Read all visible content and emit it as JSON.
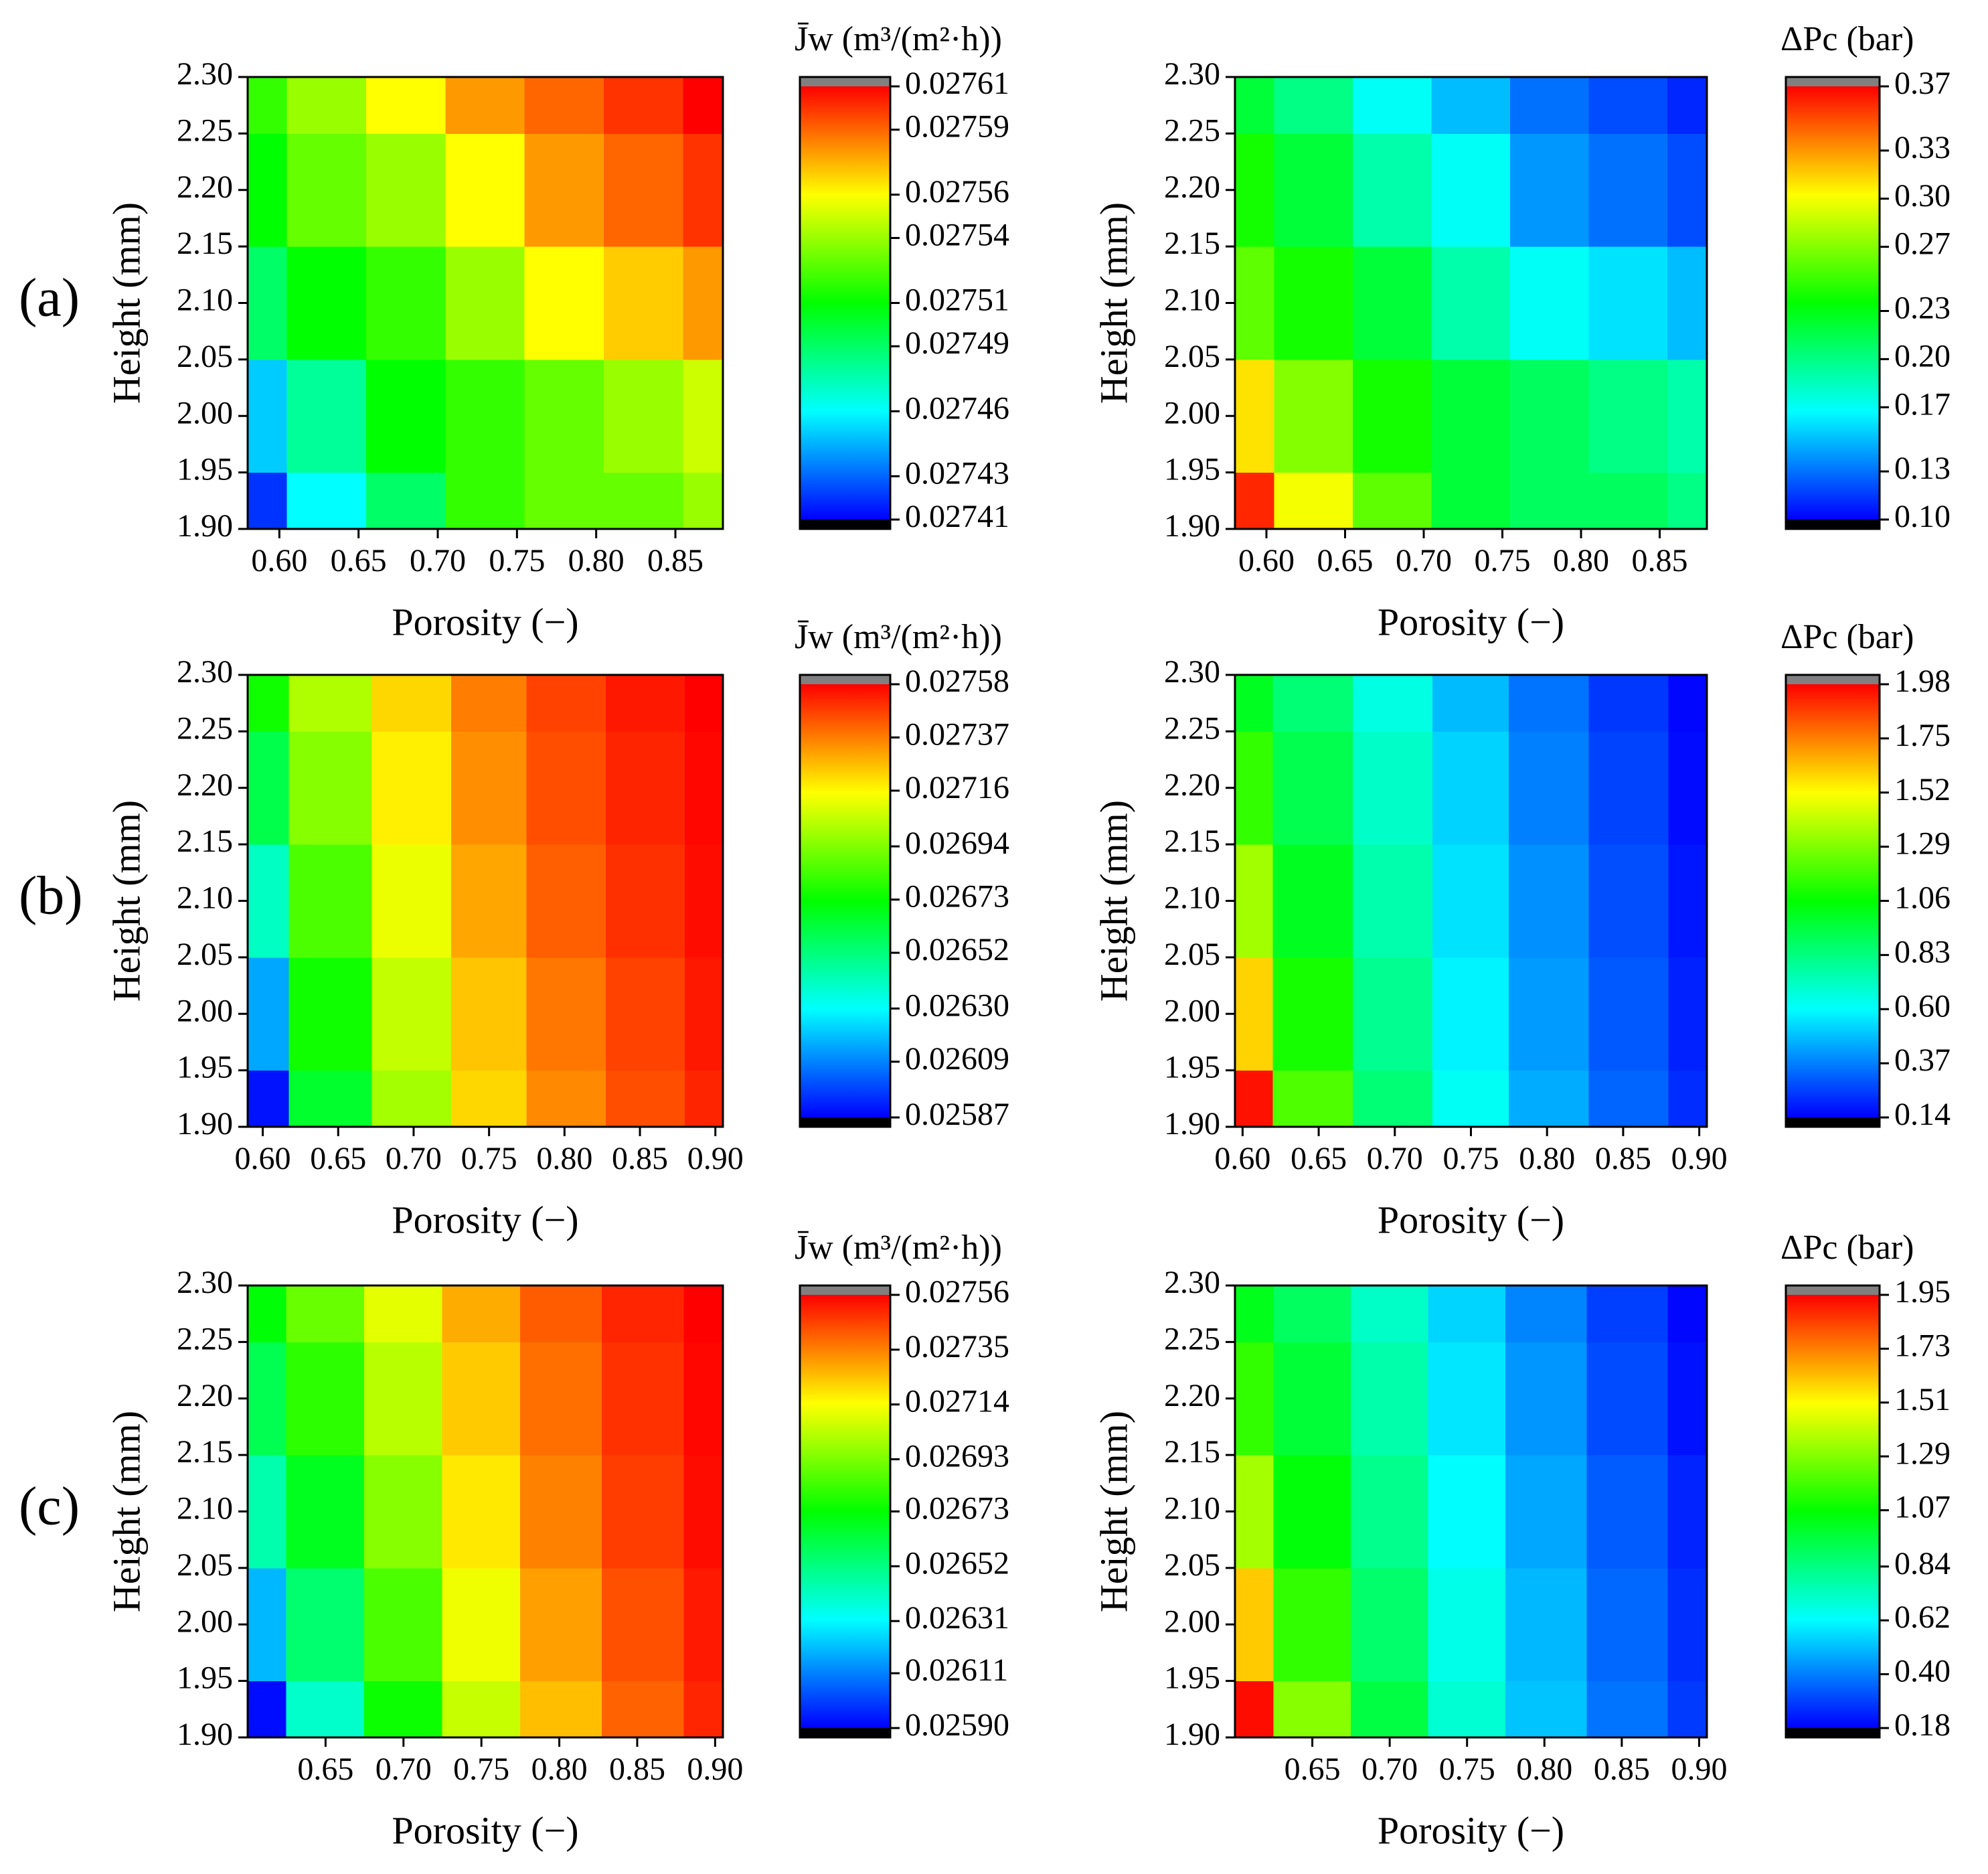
{
  "chart_data": [
    {
      "type": "contour",
      "panel_label": "(a)",
      "colorbar_title": "J̄w (m³/(m²·h))",
      "xlabel": "Porosity (−)",
      "ylabel": "Height (mm)",
      "x": [
        0.58,
        0.63,
        0.68,
        0.73,
        0.78,
        0.83,
        0.88
      ],
      "y": [
        1.9,
        2.0,
        2.1,
        2.2,
        2.3
      ],
      "z": [
        [
          0.02742,
          0.02746,
          0.02749,
          0.02752,
          0.02753,
          0.02753,
          0.02754
        ],
        [
          0.02745,
          0.02748,
          0.02751,
          0.02752,
          0.02753,
          0.02754,
          0.02755
        ],
        [
          0.02749,
          0.02751,
          0.02752,
          0.02754,
          0.02756,
          0.02757,
          0.02758
        ],
        [
          0.02751,
          0.02753,
          0.02754,
          0.02756,
          0.02758,
          0.02759,
          0.0276
        ],
        [
          0.02752,
          0.02754,
          0.02756,
          0.02758,
          0.02759,
          0.0276,
          0.02761
        ]
      ],
      "xlim": [
        0.58,
        0.88
      ],
      "xticks": [
        {
          "value": 0.6,
          "label": "0.60"
        },
        0.65,
        {
          "value": 0.7,
          "label": "0.70"
        },
        0.75,
        {
          "value": 0.8,
          "label": "0.80"
        },
        0.85
      ],
      "ylim": [
        1.9,
        2.3
      ],
      "yticks": [
        {
          "value": 1.9,
          "label": "1.90"
        },
        1.95,
        {
          "value": 2.0,
          "label": "2.00"
        },
        2.05,
        {
          "value": 2.1,
          "label": "2.10"
        },
        2.15,
        {
          "value": 2.2,
          "label": "2.20"
        },
        2.25,
        {
          "value": 2.3,
          "label": "2.30"
        }
      ],
      "zlim": [
        0.02741,
        0.02761
      ],
      "zticks": [
        0.02741,
        0.02743,
        0.02746,
        0.02749,
        0.02751,
        0.02754,
        0.02756,
        0.02759,
        0.02761
      ],
      "colormap": [
        "#0000ff",
        "#00ffff",
        "#00ff00",
        "#ffff00",
        "#ff0000"
      ],
      "under_color": "#000000",
      "over_color": "#808080"
    },
    {
      "type": "contour",
      "colorbar_title": "ΔPc (bar)",
      "xlabel": "Porosity (−)",
      "ylabel": "Height (mm)",
      "x": [
        0.58,
        0.63,
        0.68,
        0.73,
        0.78,
        0.83,
        0.88
      ],
      "y": [
        1.9,
        2.0,
        2.1,
        2.2,
        2.3
      ],
      "z": [
        [
          0.36,
          0.3,
          0.26,
          0.22,
          0.21,
          0.21,
          0.2
        ],
        [
          0.31,
          0.27,
          0.24,
          0.22,
          0.21,
          0.2,
          0.19
        ],
        [
          0.26,
          0.24,
          0.22,
          0.19,
          0.17,
          0.16,
          0.15
        ],
        [
          0.24,
          0.22,
          0.19,
          0.17,
          0.14,
          0.13,
          0.12
        ],
        [
          0.22,
          0.2,
          0.17,
          0.15,
          0.13,
          0.12,
          0.11
        ]
      ],
      "xlim": [
        0.58,
        0.88
      ],
      "xticks": [
        {
          "value": 0.6,
          "label": "0.60"
        },
        0.65,
        {
          "value": 0.7,
          "label": "0.70"
        },
        0.75,
        {
          "value": 0.8,
          "label": "0.80"
        },
        0.85
      ],
      "ylim": [
        1.9,
        2.3
      ],
      "yticks": [
        {
          "value": 1.9,
          "label": "1.90"
        },
        1.95,
        {
          "value": 2.0,
          "label": "2.00"
        },
        2.05,
        {
          "value": 2.1,
          "label": "2.10"
        },
        2.15,
        {
          "value": 2.2,
          "label": "2.20"
        },
        2.25,
        {
          "value": 2.3,
          "label": "2.30"
        }
      ],
      "zlim": [
        0.1,
        0.37
      ],
      "zticks": [
        {
          "value": 0.1,
          "label": "0.10"
        },
        0.13,
        0.17,
        {
          "value": 0.2,
          "label": "0.20"
        },
        0.23,
        0.27,
        {
          "value": 0.3,
          "label": "0.30"
        },
        0.33,
        0.37
      ],
      "colormap": [
        "#0000ff",
        "#00ffff",
        "#00ff00",
        "#ffff00",
        "#ff0000"
      ],
      "under_color": "#000000",
      "over_color": "#808080"
    },
    {
      "type": "contour",
      "panel_label": "(b)",
      "colorbar_title": "J̄w (m³/(m²·h))",
      "xlabel": "Porosity (−)",
      "ylabel": "Height (mm)",
      "x": [
        0.59,
        0.645,
        0.7,
        0.75,
        0.8,
        0.855,
        0.905
      ],
      "y": [
        1.9,
        2.0,
        2.1,
        2.2,
        2.3
      ],
      "z": [
        [
          0.0259,
          0.02665,
          0.027,
          0.02722,
          0.02735,
          0.02745,
          0.02752
        ],
        [
          0.02615,
          0.02675,
          0.02705,
          0.02725,
          0.02738,
          0.02747,
          0.02754
        ],
        [
          0.0264,
          0.02685,
          0.02712,
          0.0273,
          0.02742,
          0.0275,
          0.02756
        ],
        [
          0.0266,
          0.02695,
          0.02718,
          0.02734,
          0.02745,
          0.02752,
          0.02757
        ],
        [
          0.02675,
          0.02702,
          0.02722,
          0.02737,
          0.02747,
          0.02754,
          0.02758
        ]
      ],
      "xlim": [
        0.59,
        0.905
      ],
      "xticks": [
        {
          "value": 0.6,
          "label": "0.60"
        },
        0.65,
        {
          "value": 0.7,
          "label": "0.70"
        },
        0.75,
        {
          "value": 0.8,
          "label": "0.80"
        },
        0.85,
        {
          "value": 0.9,
          "label": "0.90"
        }
      ],
      "ylim": [
        1.9,
        2.3
      ],
      "yticks": [
        {
          "value": 1.9,
          "label": "1.90"
        },
        1.95,
        {
          "value": 2.0,
          "label": "2.00"
        },
        2.05,
        {
          "value": 2.1,
          "label": "2.10"
        },
        2.15,
        {
          "value": 2.2,
          "label": "2.20"
        },
        2.25,
        {
          "value": 2.3,
          "label": "2.30"
        }
      ],
      "zlim": [
        0.02587,
        0.02758
      ],
      "zticks": [
        0.02587,
        0.02609,
        {
          "value": 0.0263,
          "label": "0.02630"
        },
        0.02652,
        0.02673,
        0.02694,
        0.02716,
        0.02737,
        0.02758
      ],
      "colormap": [
        "#0000ff",
        "#00ffff",
        "#00ff00",
        "#ffff00",
        "#ff0000"
      ],
      "under_color": "#000000",
      "over_color": "#808080"
    },
    {
      "type": "contour",
      "colorbar_title": "ΔPc (bar)",
      "xlabel": "Porosity (−)",
      "ylabel": "Height (mm)",
      "x": [
        0.595,
        0.645,
        0.7,
        0.75,
        0.8,
        0.855,
        0.905
      ],
      "y": [
        1.9,
        2.0,
        2.1,
        2.2,
        2.3
      ],
      "z": [
        [
          1.95,
          1.2,
          0.85,
          0.62,
          0.45,
          0.32,
          0.22
        ],
        [
          1.6,
          1.1,
          0.8,
          0.58,
          0.42,
          0.3,
          0.2
        ],
        [
          1.35,
          1.0,
          0.75,
          0.55,
          0.4,
          0.28,
          0.18
        ],
        [
          1.15,
          0.92,
          0.7,
          0.52,
          0.37,
          0.26,
          0.16
        ],
        [
          1.0,
          0.85,
          0.65,
          0.48,
          0.35,
          0.24,
          0.15
        ]
      ],
      "xlim": [
        0.595,
        0.905
      ],
      "xticks": [
        {
          "value": 0.6,
          "label": "0.60"
        },
        0.65,
        {
          "value": 0.7,
          "label": "0.70"
        },
        0.75,
        {
          "value": 0.8,
          "label": "0.80"
        },
        0.85,
        {
          "value": 0.9,
          "label": "0.90"
        }
      ],
      "ylim": [
        1.9,
        2.3
      ],
      "yticks": [
        {
          "value": 1.9,
          "label": "1.90"
        },
        1.95,
        {
          "value": 2.0,
          "label": "2.00"
        },
        2.05,
        {
          "value": 2.1,
          "label": "2.10"
        },
        2.15,
        {
          "value": 2.2,
          "label": "2.20"
        },
        2.25,
        {
          "value": 2.3,
          "label": "2.30"
        }
      ],
      "zlim": [
        0.14,
        1.98
      ],
      "zticks": [
        0.14,
        0.37,
        {
          "value": 0.6,
          "label": "0.60"
        },
        0.83,
        1.06,
        1.29,
        1.52,
        1.75,
        1.98
      ],
      "colormap": [
        "#0000ff",
        "#00ffff",
        "#00ff00",
        "#ffff00",
        "#ff0000"
      ],
      "under_color": "#000000",
      "over_color": "#808080"
    },
    {
      "type": "contour",
      "panel_label": "(c)",
      "colorbar_title": "J̄w (m³/(m²·h))",
      "xlabel": "Porosity (−)",
      "ylabel": "Height (mm)",
      "x": [
        0.6,
        0.65,
        0.7,
        0.75,
        0.8,
        0.855,
        0.905
      ],
      "y": [
        1.9,
        2.0,
        2.1,
        2.2,
        2.3
      ],
      "z": [
        [
          0.02592,
          0.0264,
          0.02675,
          0.02705,
          0.02725,
          0.0274,
          0.0275
        ],
        [
          0.0262,
          0.02655,
          0.02685,
          0.02712,
          0.0273,
          0.02743,
          0.02752
        ],
        [
          0.02645,
          0.02668,
          0.02695,
          0.02718,
          0.02735,
          0.02746,
          0.02754
        ],
        [
          0.0266,
          0.0268,
          0.02703,
          0.02723,
          0.02738,
          0.02748,
          0.02755
        ],
        [
          0.02672,
          0.0269,
          0.0271,
          0.02728,
          0.02741,
          0.0275,
          0.02756
        ]
      ],
      "xlim": [
        0.6,
        0.905
      ],
      "xticks": [
        0.65,
        {
          "value": 0.7,
          "label": "0.70"
        },
        0.75,
        {
          "value": 0.8,
          "label": "0.80"
        },
        0.85,
        {
          "value": 0.9,
          "label": "0.90"
        }
      ],
      "ylim": [
        1.9,
        2.3
      ],
      "yticks": [
        {
          "value": 1.9,
          "label": "1.90"
        },
        1.95,
        {
          "value": 2.0,
          "label": "2.00"
        },
        2.05,
        {
          "value": 2.1,
          "label": "2.10"
        },
        2.15,
        {
          "value": 2.2,
          "label": "2.20"
        },
        2.25,
        {
          "value": 2.3,
          "label": "2.30"
        }
      ],
      "zlim": [
        0.0259,
        0.02756
      ],
      "zticks": [
        {
          "value": 0.0259,
          "label": "0.02590"
        },
        0.02611,
        0.02631,
        0.02652,
        0.02673,
        0.02693,
        0.02714,
        0.02735,
        0.02756
      ],
      "colormap": [
        "#0000ff",
        "#00ffff",
        "#00ff00",
        "#ffff00",
        "#ff0000"
      ],
      "under_color": "#000000",
      "over_color": "#808080"
    },
    {
      "type": "contour",
      "colorbar_title": "ΔPc (bar)",
      "xlabel": "Porosity (−)",
      "ylabel": "Height (mm)",
      "x": [
        0.6,
        0.65,
        0.7,
        0.75,
        0.8,
        0.855,
        0.905
      ],
      "y": [
        1.9,
        2.0,
        2.1,
        2.2,
        2.3
      ],
      "z": [
        [
          1.93,
          1.3,
          0.95,
          0.7,
          0.52,
          0.38,
          0.28
        ],
        [
          1.6,
          1.15,
          0.88,
          0.66,
          0.5,
          0.36,
          0.26
        ],
        [
          1.35,
          1.05,
          0.82,
          0.62,
          0.47,
          0.34,
          0.24
        ],
        [
          1.15,
          0.97,
          0.77,
          0.58,
          0.44,
          0.31,
          0.21
        ],
        [
          1.02,
          0.9,
          0.72,
          0.55,
          0.41,
          0.29,
          0.19
        ]
      ],
      "xlim": [
        0.6,
        0.905
      ],
      "xticks": [
        0.65,
        {
          "value": 0.7,
          "label": "0.70"
        },
        0.75,
        {
          "value": 0.8,
          "label": "0.80"
        },
        0.85,
        {
          "value": 0.9,
          "label": "0.90"
        }
      ],
      "ylim": [
        1.9,
        2.3
      ],
      "yticks": [
        {
          "value": 1.9,
          "label": "1.90"
        },
        1.95,
        {
          "value": 2.0,
          "label": "2.00"
        },
        2.05,
        {
          "value": 2.1,
          "label": "2.10"
        },
        2.15,
        {
          "value": 2.2,
          "label": "2.20"
        },
        2.25,
        {
          "value": 2.3,
          "label": "2.30"
        }
      ],
      "zlim": [
        0.18,
        1.95
      ],
      "zticks": [
        0.18,
        {
          "value": 0.4,
          "label": "0.40"
        },
        0.62,
        0.84,
        1.07,
        1.29,
        1.51,
        1.73,
        1.95
      ],
      "colormap": [
        "#0000ff",
        "#00ffff",
        "#00ff00",
        "#ffff00",
        "#ff0000"
      ],
      "under_color": "#000000",
      "over_color": "#808080"
    }
  ]
}
